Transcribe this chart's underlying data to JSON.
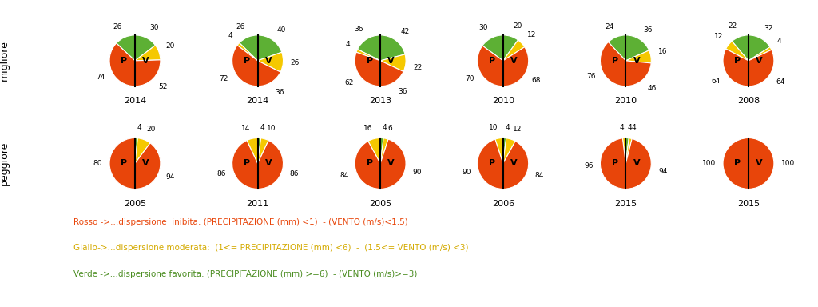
{
  "rows": [
    {
      "label": "migliore",
      "charts": [
        {
          "year": "2014",
          "slices_P": [
            {
              "value": 30,
              "color": "#5db034",
              "label": "30"
            },
            {
              "value": 20,
              "color": "#f5c800",
              "label": "20"
            },
            {
              "value": 52,
              "color": "#e8450a",
              "label": "52"
            }
          ],
          "slices_V": [
            {
              "value": 26,
              "color": "#5db034",
              "label": "26"
            },
            {
              "value": 74,
              "color": "#e8450a",
              "label": "74"
            }
          ]
        },
        {
          "year": "2014",
          "slices_P": [
            {
              "value": 40,
              "color": "#5db034",
              "label": "40"
            },
            {
              "value": 26,
              "color": "#f5c800",
              "label": "26"
            },
            {
              "value": 36,
              "color": "#e8450a",
              "label": "36"
            }
          ],
          "slices_V": [
            {
              "value": 26,
              "color": "#5db034",
              "label": "26"
            },
            {
              "value": 4,
              "color": "#f5c800",
              "label": "4"
            },
            {
              "value": 72,
              "color": "#e8450a",
              "label": "72"
            }
          ]
        },
        {
          "year": "2013",
          "slices_P": [
            {
              "value": 42,
              "color": "#5db034",
              "label": "42"
            },
            {
              "value": 22,
              "color": "#f5c800",
              "label": "22"
            },
            {
              "value": 36,
              "color": "#e8450a",
              "label": "36"
            }
          ],
          "slices_V": [
            {
              "value": 36,
              "color": "#5db034",
              "label": "36"
            },
            {
              "value": 4,
              "color": "#f5c800",
              "label": "4"
            },
            {
              "value": 62,
              "color": "#e8450a",
              "label": "62"
            }
          ]
        },
        {
          "year": "2010",
          "slices_P": [
            {
              "value": 20,
              "color": "#5db034",
              "label": "20"
            },
            {
              "value": 12,
              "color": "#f5c800",
              "label": "12"
            },
            {
              "value": 68,
              "color": "#e8450a",
              "label": "68"
            }
          ],
          "slices_V": [
            {
              "value": 30,
              "color": "#5db034",
              "label": "30"
            },
            {
              "value": 70,
              "color": "#e8450a",
              "label": "70"
            }
          ]
        },
        {
          "year": "2010",
          "slices_P": [
            {
              "value": 36,
              "color": "#5db034",
              "label": "36"
            },
            {
              "value": 16,
              "color": "#f5c800",
              "label": "16"
            },
            {
              "value": 46,
              "color": "#e8450a",
              "label": "46"
            }
          ],
          "slices_V": [
            {
              "value": 24,
              "color": "#5db034",
              "label": "24"
            },
            {
              "value": 76,
              "color": "#e8450a",
              "label": "76"
            }
          ]
        },
        {
          "year": "2008",
          "slices_P": [
            {
              "value": 32,
              "color": "#5db034",
              "label": "32"
            },
            {
              "value": 4,
              "color": "#f5c800",
              "label": "4"
            },
            {
              "value": 64,
              "color": "#e8450a",
              "label": "64"
            }
          ],
          "slices_V": [
            {
              "value": 22,
              "color": "#5db034",
              "label": "22"
            },
            {
              "value": 12,
              "color": "#f5c800",
              "label": "12"
            },
            {
              "value": 64,
              "color": "#e8450a",
              "label": "64"
            }
          ]
        }
      ]
    },
    {
      "label": "peggiore",
      "charts": [
        {
          "year": "2005",
          "slices_P": [
            {
              "value": 4,
              "color": "#5db034",
              "label": "4"
            },
            {
              "value": 20,
              "color": "#f5c800",
              "label": "20"
            },
            {
              "value": 94,
              "color": "#e8450a",
              "label": "94"
            }
          ],
          "slices_V": [
            {
              "value": 80,
              "color": "#e8450a",
              "label": "80"
            }
          ]
        },
        {
          "year": "2011",
          "slices_P": [
            {
              "value": 4,
              "color": "#5db034",
              "label": "4"
            },
            {
              "value": 10,
              "color": "#f5c800",
              "label": "10"
            },
            {
              "value": 86,
              "color": "#e8450a",
              "label": "86"
            }
          ],
          "slices_V": [
            {
              "value": 14,
              "color": "#f5c800",
              "label": "14"
            },
            {
              "value": 86,
              "color": "#e8450a",
              "label": "86"
            }
          ]
        },
        {
          "year": "2005",
          "slices_P": [
            {
              "value": 4,
              "color": "#5db034",
              "label": "4"
            },
            {
              "value": 6,
              "color": "#f5c800",
              "label": "6"
            },
            {
              "value": 90,
              "color": "#e8450a",
              "label": "90"
            }
          ],
          "slices_V": [
            {
              "value": 16,
              "color": "#f5c800",
              "label": "16"
            },
            {
              "value": 84,
              "color": "#e8450a",
              "label": "84"
            }
          ]
        },
        {
          "year": "2006",
          "slices_P": [
            {
              "value": 4,
              "color": "#5db034",
              "label": "4"
            },
            {
              "value": 12,
              "color": "#f5c800",
              "label": "12"
            },
            {
              "value": 84,
              "color": "#e8450a",
              "label": "84"
            }
          ],
          "slices_V": [
            {
              "value": 10,
              "color": "#f5c800",
              "label": "10"
            },
            {
              "value": 90,
              "color": "#e8450a",
              "label": "90"
            }
          ]
        },
        {
          "year": "2015",
          "slices_P": [
            {
              "value": 4,
              "color": "#5db034",
              "label": "4"
            },
            {
              "value": 4,
              "color": "#f5c800",
              "label": "4"
            },
            {
              "value": 94,
              "color": "#e8450a",
              "label": "94"
            }
          ],
          "slices_V": [
            {
              "value": 4,
              "color": "#f5c800",
              "label": "4"
            },
            {
              "value": 96,
              "color": "#e8450a",
              "label": "96"
            }
          ]
        },
        {
          "year": "2015",
          "slices_P": [
            {
              "value": 100,
              "color": "#e8450a",
              "label": "100"
            }
          ],
          "slices_V": [
            {
              "value": 100,
              "color": "#e8450a",
              "label": "100"
            }
          ]
        }
      ]
    }
  ],
  "legend_lines": [
    {
      "color": "#e8450a",
      "text": "Rosso ->...dispersione  inibita: (PRECIPITAZIONE (mm) <1)  - (VENTO (m/s)<1.5)"
    },
    {
      "color": "#d4aa00",
      "text": "Giallo->...dispersione moderata:  (1<= PRECIPITAZIONE (mm) <6)  -  (1.5<= VENTO (m/s) <3)"
    },
    {
      "color": "#4a8c20",
      "text": "Verde ->...dispersione favorita: (PRECIPITAZIONE (mm) >=6)  - (VENTO (m/s)>=3)"
    }
  ],
  "bg_color": "#ffffff",
  "label_fontsize": 6.5,
  "year_fontsize": 8,
  "pv_fontsize": 8,
  "row_label_fontsize": 9
}
